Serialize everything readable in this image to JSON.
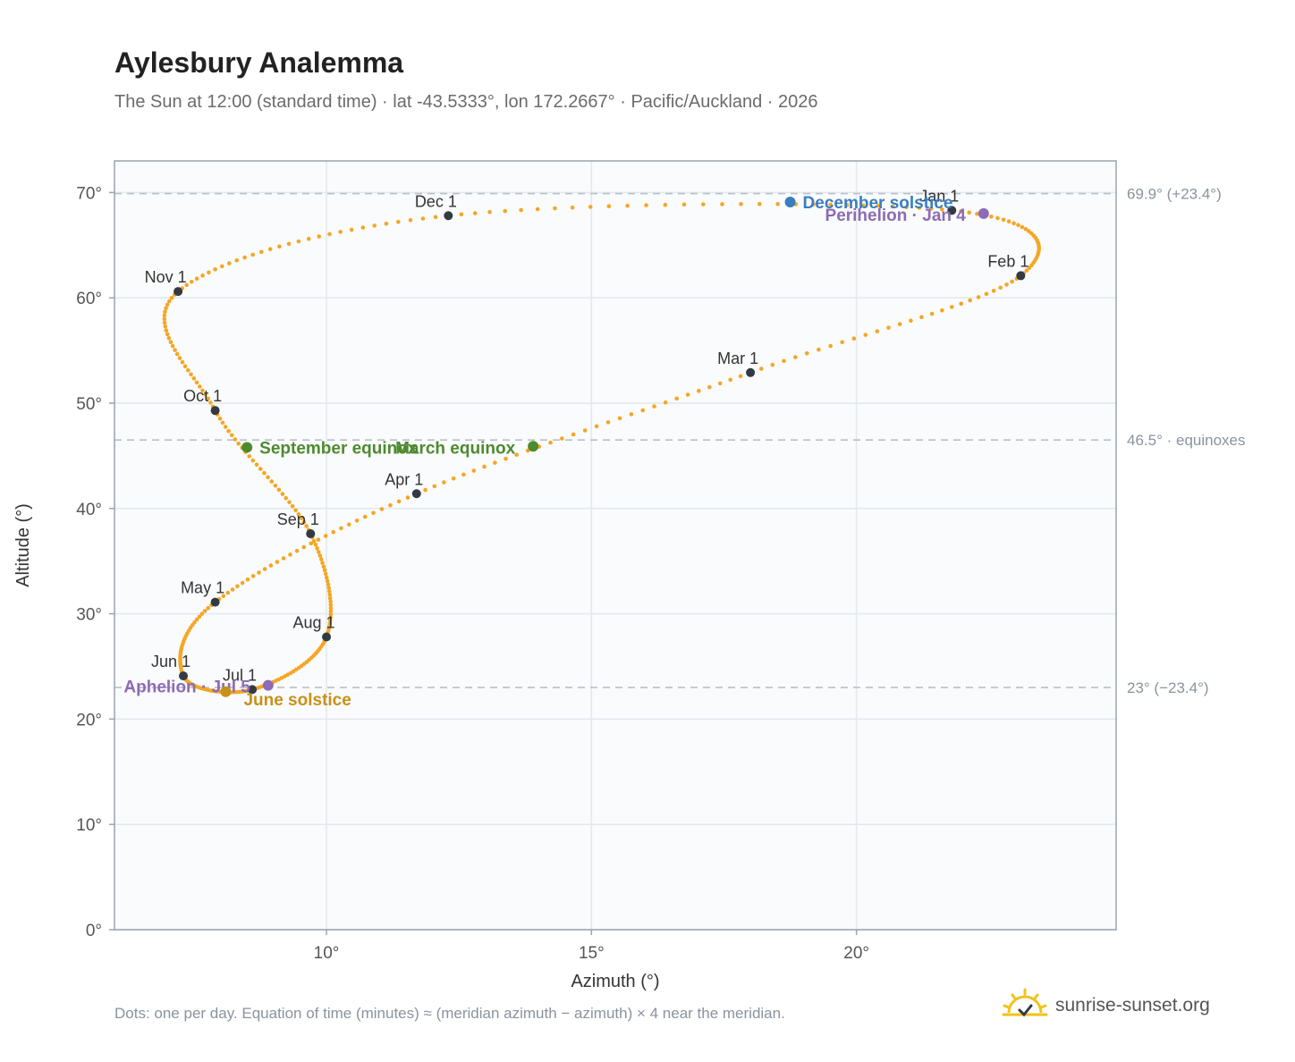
{
  "title": "Aylesbury Analemma",
  "subtitle": "The Sun at 12:00 (standard time) · lat -43.5333°, lon 172.2667° · Pacific/Auckland · 2026",
  "footnote": "Dots: one per day. Equation of time (minutes) ≈ (meridian azimuth − azimuth) × 4 near the meridian.",
  "brand": "sunrise-sunset.org",
  "chart_data": {
    "type": "scatter",
    "xlabel": "Azimuth (°)",
    "ylabel": "Altitude (°)",
    "xlim": [
      6.0,
      24.9
    ],
    "ylim": [
      0,
      73
    ],
    "x_ticks": [
      {
        "value": 10,
        "label": "10°"
      },
      {
        "value": 15,
        "label": "15°"
      },
      {
        "value": 20,
        "label": "20°"
      }
    ],
    "y_ticks": [
      {
        "value": 0,
        "label": "0°"
      },
      {
        "value": 10,
        "label": "10°"
      },
      {
        "value": 20,
        "label": "20°"
      },
      {
        "value": 30,
        "label": "30°"
      },
      {
        "value": 40,
        "label": "40°"
      },
      {
        "value": 50,
        "label": "50°"
      },
      {
        "value": 60,
        "label": "60°"
      },
      {
        "value": 70,
        "label": "70°"
      }
    ],
    "grid": true,
    "reference_lines": [
      {
        "value": 69.9,
        "label": "69.9° (+23.4°)"
      },
      {
        "value": 46.5,
        "label": "46.5° · equinoxes"
      },
      {
        "value": 23.0,
        "label": "23° (−23.4°)"
      }
    ],
    "series_color": "#f5a623",
    "month_markers": [
      {
        "label": "Jan 1",
        "az": 21.8,
        "alt": 68.3
      },
      {
        "label": "Feb 1",
        "az": 23.1,
        "alt": 62.1
      },
      {
        "label": "Mar 1",
        "az": 18.0,
        "alt": 52.9
      },
      {
        "label": "Apr 1",
        "az": 11.7,
        "alt": 41.4
      },
      {
        "label": "May 1",
        "az": 7.9,
        "alt": 31.1
      },
      {
        "label": "Jun 1",
        "az": 7.3,
        "alt": 24.1
      },
      {
        "label": "Jul 1",
        "az": 8.6,
        "alt": 22.8
      },
      {
        "label": "Aug 1",
        "az": 10.0,
        "alt": 27.8
      },
      {
        "label": "Sep 1",
        "az": 9.7,
        "alt": 37.6
      },
      {
        "label": "Oct 1",
        "az": 7.9,
        "alt": 49.3
      },
      {
        "label": "Nov 1",
        "az": 7.2,
        "alt": 60.6
      },
      {
        "label": "Dec 1",
        "az": 12.3,
        "alt": 67.8
      }
    ],
    "events": [
      {
        "label": "December solstice",
        "az": 18.75,
        "alt": 69.1,
        "color": "#3a7ebf"
      },
      {
        "label": "Perihelion · Jan 4",
        "az": 22.4,
        "alt": 68.0,
        "color": "#8e6bb5"
      },
      {
        "label": "March equinox",
        "az": 13.9,
        "alt": 45.9,
        "color": "#4e8a2e"
      },
      {
        "label": "September equinox",
        "az": 8.5,
        "alt": 45.8,
        "color": "#4e8a2e"
      },
      {
        "label": "Aphelion · Jul 5",
        "az": 8.9,
        "alt": 23.2,
        "color": "#8e6bb5"
      },
      {
        "label": "June solstice",
        "az": 8.1,
        "alt": 22.6,
        "color": "#c8901a"
      }
    ]
  }
}
